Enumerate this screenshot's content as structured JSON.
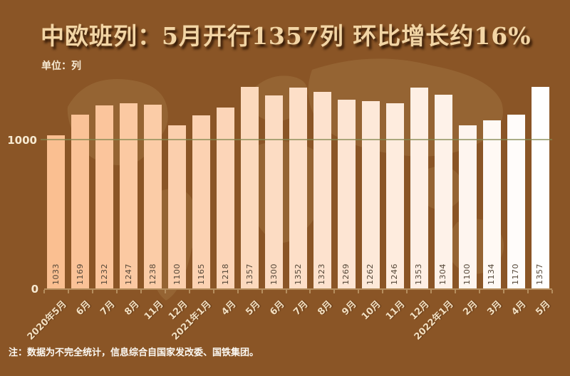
{
  "header": {
    "title": "中欧班列：5月开行1357列 环比增长约16%",
    "unit_label": "单位：列"
  },
  "chart_data": {
    "type": "bar",
    "categories": [
      "2020年5月",
      "6月",
      "7月",
      "8月",
      "11月",
      "12月",
      "2021年1月",
      "4月",
      "5月",
      "6月",
      "7月",
      "8月",
      "9月",
      "10月",
      "11月",
      "12月",
      "2022年1月",
      "2月",
      "3月",
      "4月",
      "5月"
    ],
    "values": [
      1033,
      1169,
      1232,
      1247,
      1238,
      1100,
      1165,
      1218,
      1357,
      1300,
      1352,
      1323,
      1269,
      1262,
      1246,
      1353,
      1304,
      1100,
      1134,
      1170,
      1357
    ],
    "title": "中欧班列：5月开行1357列 环比增长约16%",
    "xlabel": "",
    "ylabel": "列",
    "ylim": [
      0,
      1520
    ],
    "gridline_value": 1000,
    "y_axis": {
      "grid_label": "1000",
      "zero_label": "0"
    },
    "legend": "none",
    "grid": "single horizontal line at 1000",
    "bar_color_start": "#fabf91",
    "bar_color_end": "#ffffff"
  },
  "footer": {
    "note": "注：数据为不完全统计，信息综合自国家发改委、国铁集团。"
  },
  "colors": {
    "background": "#8a5526",
    "map_silhouette": "#9d6e3c",
    "title_text": "#f2d5a5",
    "axis": "#b68e5e",
    "gridline_olive": "#82874f",
    "value_label": "#554738",
    "tick_label": "#f3dfc0"
  }
}
